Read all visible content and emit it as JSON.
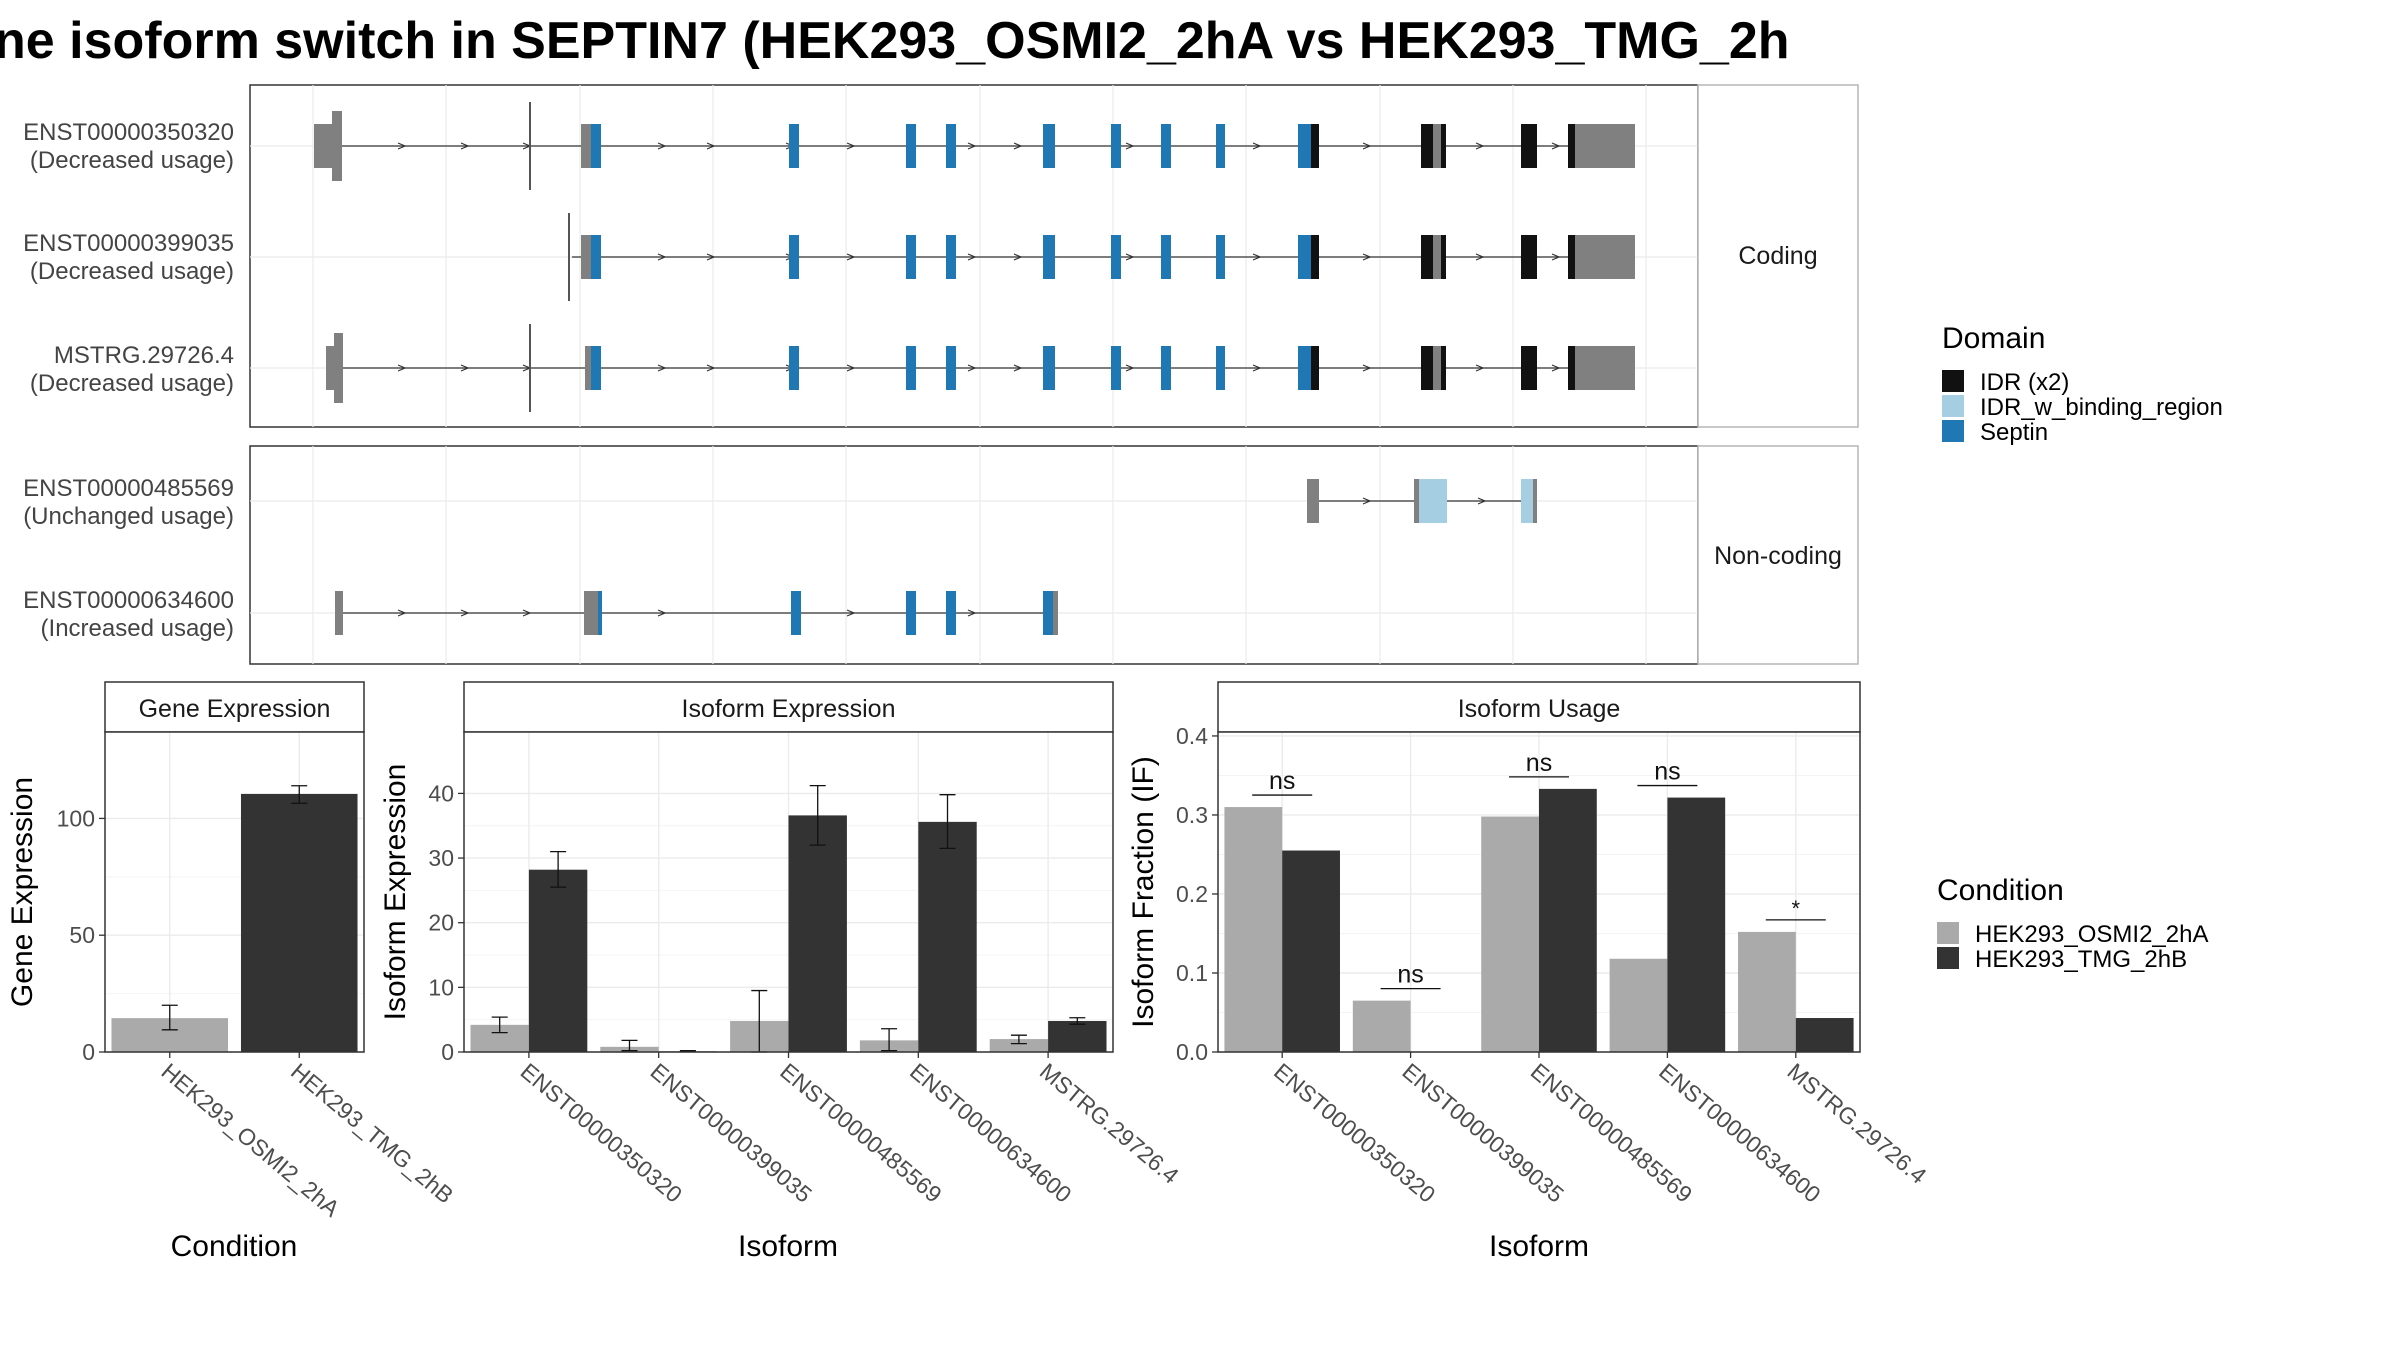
{
  "page": {
    "title": "ne isoform switch in SEPTIN7 (HEK293_OSMI2_2hA vs HEK293_TMG_2h"
  },
  "structure": {
    "coding_strip": "Coding",
    "noncoding_strip": "Non-coding",
    "coding_isoforms": [
      {
        "id": "ENST00000350320",
        "usage": "(Decreased usage)"
      },
      {
        "id": "ENST00000399035",
        "usage": "(Decreased usage)"
      },
      {
        "id": "MSTRG.29726.4",
        "usage": "(Decreased usage)"
      }
    ],
    "noncoding_isoforms": [
      {
        "id": "ENST00000485569",
        "usage": "(Unchanged usage)"
      },
      {
        "id": "ENST00000634600",
        "usage": "(Increased usage)"
      }
    ]
  },
  "legends": {
    "domain": {
      "title": "Domain",
      "items": [
        {
          "label": "IDR (x2)",
          "color": "#111111"
        },
        {
          "label": "IDR_w_binding_region",
          "color": "#a6cee3"
        },
        {
          "label": "Septin",
          "color": "#1f78b4"
        }
      ]
    },
    "condition": {
      "title": "Condition",
      "items": [
        {
          "label": "HEK293_OSMI2_2hA",
          "color": "#aaaaaa"
        },
        {
          "label": "HEK293_TMG_2hB",
          "color": "#333333"
        }
      ]
    }
  },
  "chart_data": [
    {
      "type": "bar",
      "title": "Gene Expression",
      "xlabel": "Condition",
      "ylabel": "Gene Expression",
      "categories": [
        "HEK293_OSMI2_2hA",
        "HEK293_TMG_2hB"
      ],
      "values": [
        14.5,
        110.5
      ],
      "error_low": [
        9.5,
        106.5
      ],
      "error_high": [
        20,
        114
      ],
      "bar_colors": [
        "#aaaaaa",
        "#333333"
      ],
      "ylim": [
        0,
        137
      ],
      "yticks": [
        0,
        50,
        100
      ]
    },
    {
      "type": "bar",
      "title": "Isoform Expression",
      "xlabel": "Isoform",
      "ylabel": "Isoform Expression",
      "categories": [
        "ENST00000350320",
        "ENST00000399035",
        "ENST00000485569",
        "ENST00000634600",
        "MSTRG.29726.4"
      ],
      "series": [
        {
          "name": "HEK293_OSMI2_2hA",
          "values": [
            4.2,
            0.8,
            4.8,
            1.8,
            2.0
          ],
          "error_low": [
            3.0,
            0.2,
            0,
            0.2,
            1.3
          ],
          "error_high": [
            5.4,
            1.8,
            9.5,
            3.6,
            2.6
          ]
        },
        {
          "name": "HEK293_TMG_2hB",
          "values": [
            28.2,
            0.1,
            36.6,
            35.6,
            4.8
          ],
          "error_low": [
            25.5,
            0.05,
            32.0,
            31.5,
            4.3
          ],
          "error_high": [
            31.0,
            0.2,
            41.2,
            39.8,
            5.3
          ]
        }
      ],
      "ylim": [
        0,
        49.5
      ],
      "yticks": [
        0,
        10,
        20,
        30,
        40
      ]
    },
    {
      "type": "bar",
      "title": "Isoform Usage",
      "xlabel": "Isoform",
      "ylabel": "Isoform Fraction (IF)",
      "categories": [
        "ENST00000350320",
        "ENST00000399035",
        "ENST00000485569",
        "ENST00000634600",
        "MSTRG.29726.4"
      ],
      "series": [
        {
          "name": "HEK293_OSMI2_2hA",
          "values": [
            0.31,
            0.065,
            0.298,
            0.118,
            0.152
          ]
        },
        {
          "name": "HEK293_TMG_2hB",
          "values": [
            0.255,
            0.0,
            0.333,
            0.322,
            0.043
          ]
        }
      ],
      "significance": [
        "ns",
        "ns",
        "ns",
        "ns",
        "*"
      ],
      "ylim": [
        0,
        0.405
      ],
      "yticks": [
        0.0,
        0.1,
        0.2,
        0.3,
        0.4
      ],
      "ytick_labels": [
        "0.0",
        "0.1",
        "0.2",
        "0.3",
        "0.4"
      ]
    }
  ]
}
